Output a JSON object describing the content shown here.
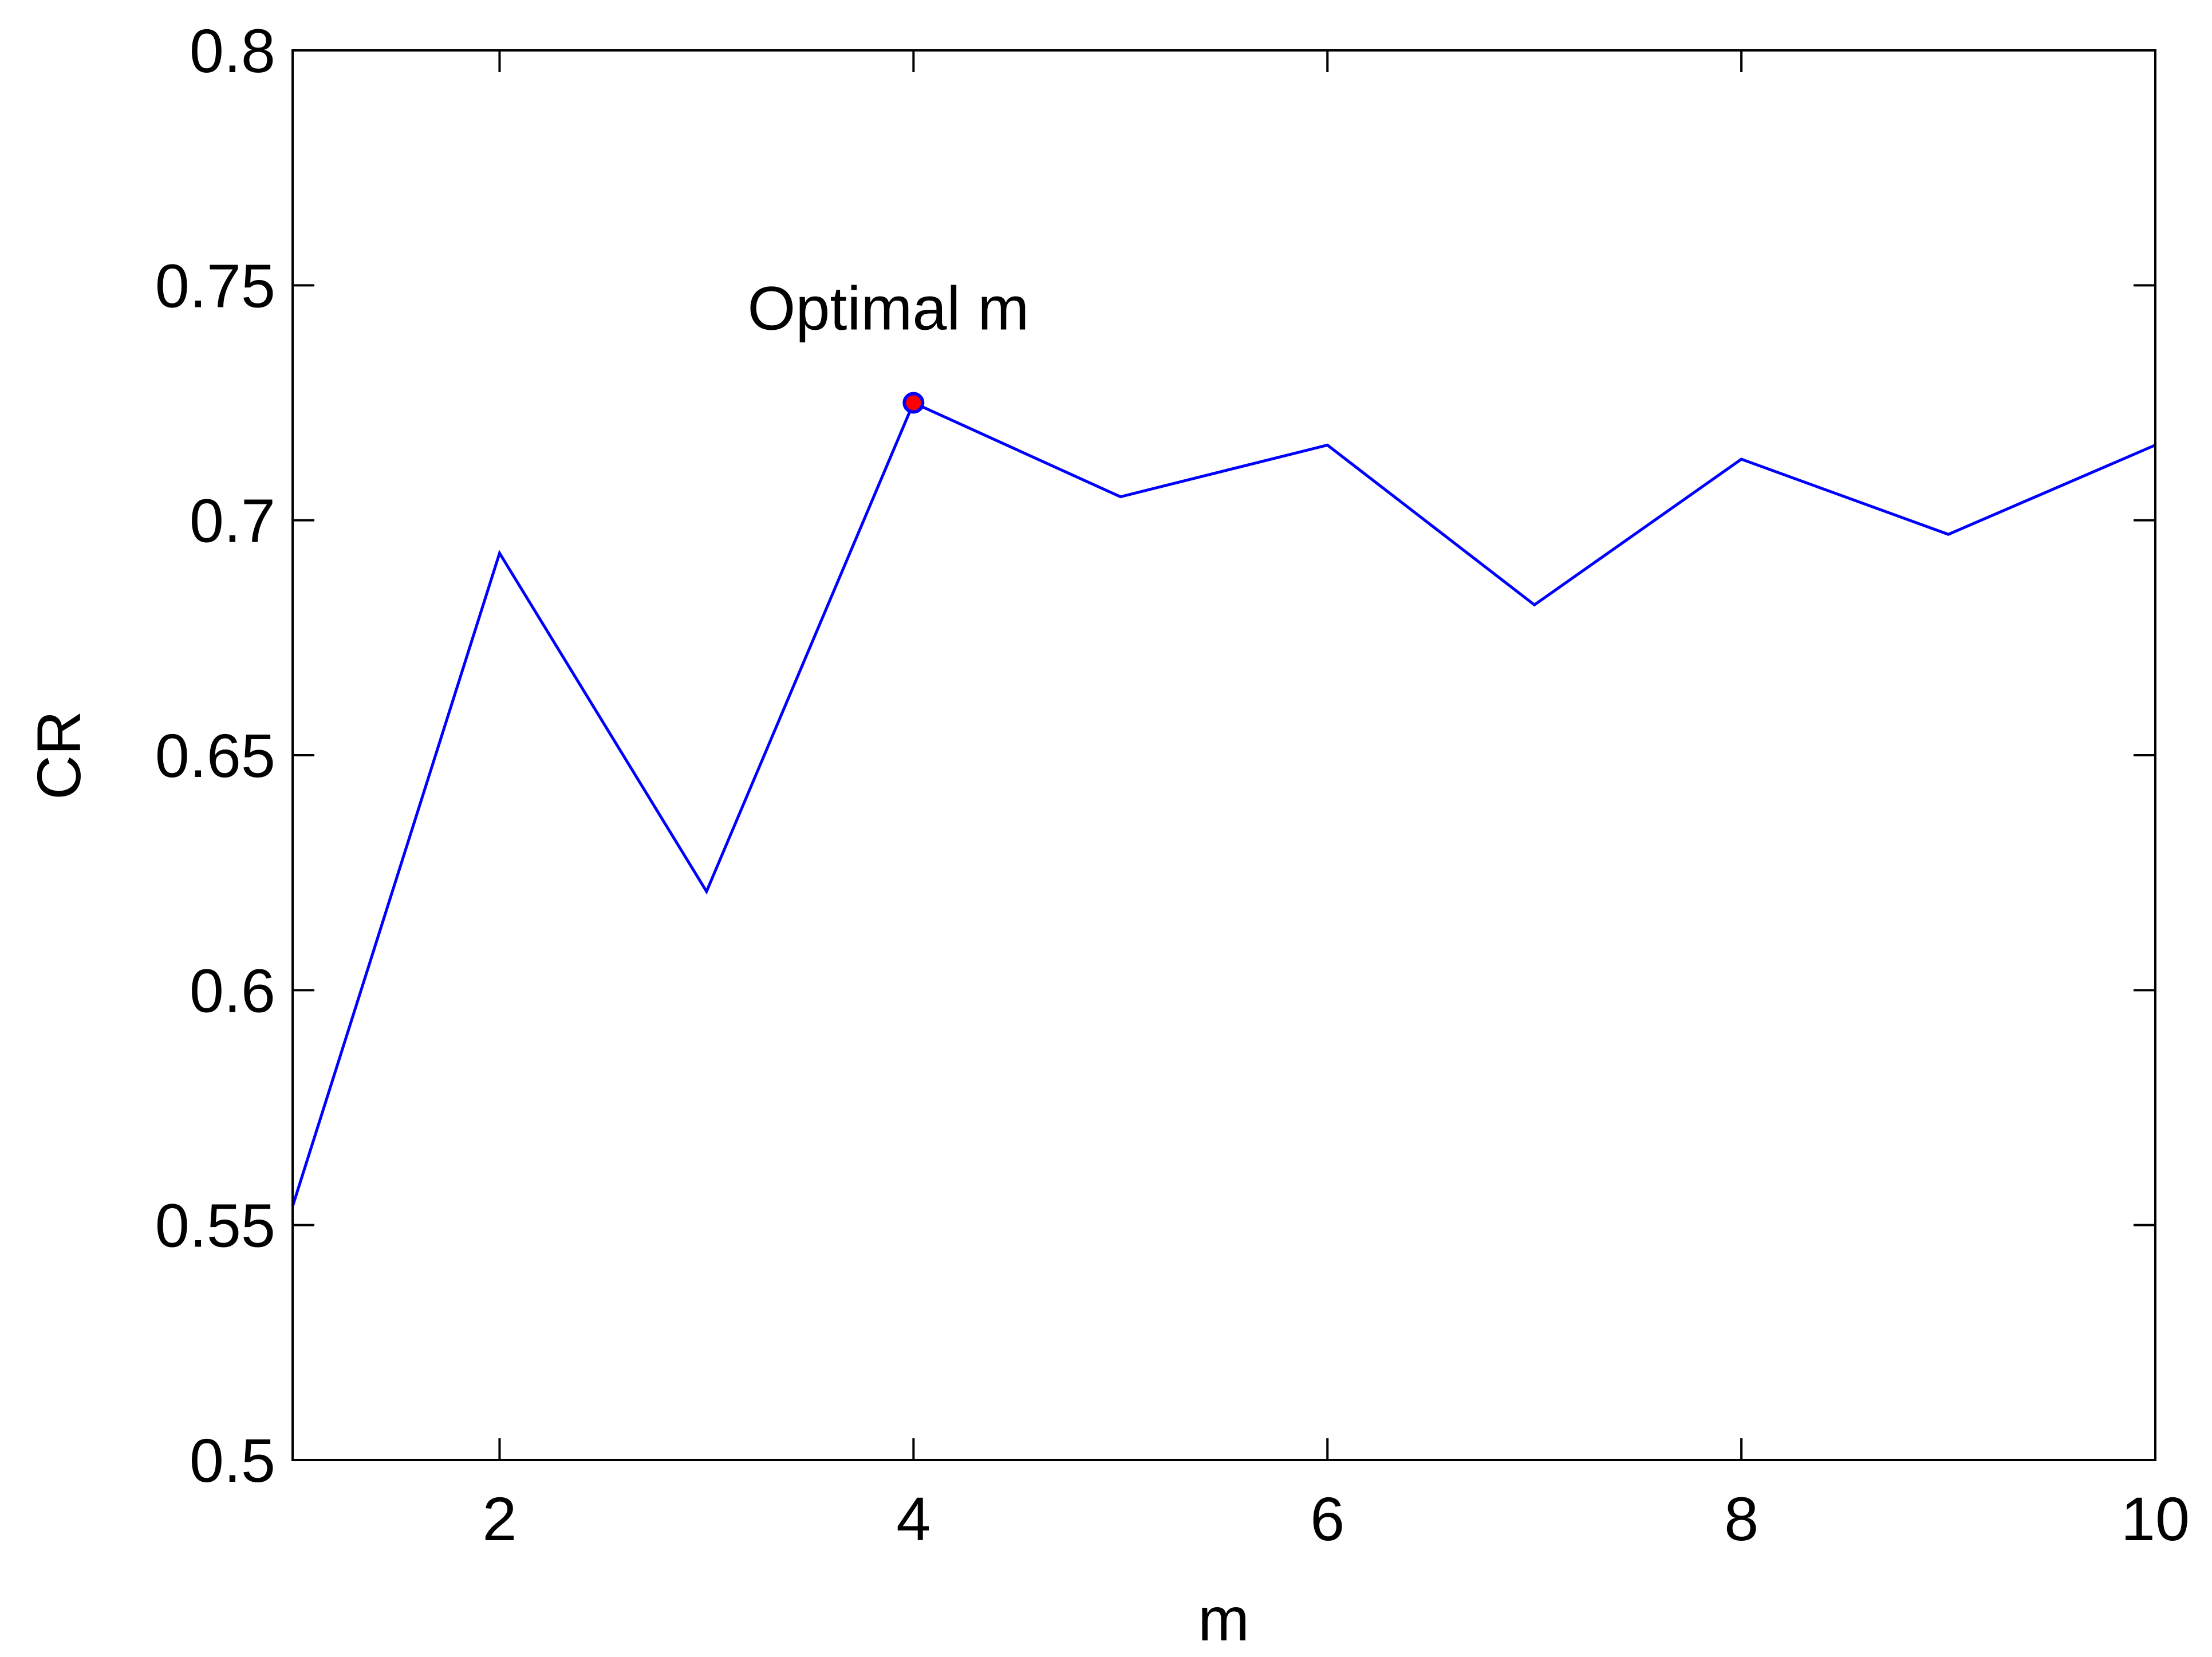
{
  "chart_data": {
    "type": "line",
    "title": "",
    "xlabel": "m",
    "ylabel": "CR",
    "xlim": [
      1,
      10
    ],
    "ylim": [
      0.5,
      0.8
    ],
    "xticks": [
      2,
      4,
      6,
      8,
      10
    ],
    "xtick_labels": [
      "2",
      "4",
      "6",
      "8",
      "10"
    ],
    "yticks": [
      0.5,
      0.55,
      0.6,
      0.65,
      0.7,
      0.75,
      0.8
    ],
    "ytick_labels": [
      "0.5",
      "0.55",
      "0.6",
      "0.65",
      "0.7",
      "0.75",
      "0.8"
    ],
    "grid": false,
    "legend": "none",
    "series": [
      {
        "color": "#0000ff",
        "x": [
          1,
          2,
          3,
          4,
          5,
          6,
          7,
          8,
          9,
          10
        ],
        "values": [
          0.554,
          0.693,
          0.621,
          0.725,
          0.705,
          0.716,
          0.682,
          0.713,
          0.697,
          0.716
        ]
      }
    ],
    "highlight": {
      "x": 4,
      "y": 0.725,
      "marker_fill": "#ff0000",
      "marker_edge": "#0000ff"
    },
    "annotations": [
      {
        "text": "Optimal m",
        "x": 4,
        "y": 0.745
      }
    ]
  }
}
